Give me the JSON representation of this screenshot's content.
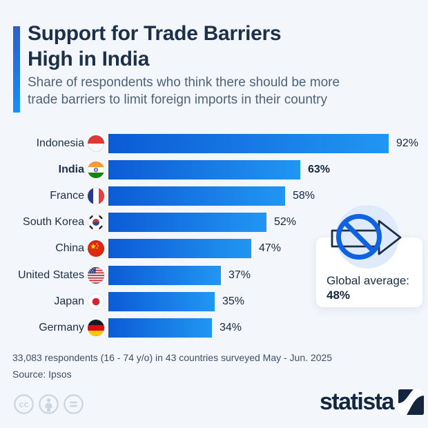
{
  "header": {
    "title_lines": [
      "Support for Trade Barriers",
      "High in India"
    ],
    "subtitle_lines": [
      "Share of respondents who think there should be more",
      "trade barriers to limit foreign imports in their country"
    ]
  },
  "chart_data": {
    "type": "bar",
    "orientation": "horizontal",
    "title": "Support for Trade Barriers High in India",
    "subtitle": "Share of respondents who think there should be more trade barriers to limit foreign imports in their country",
    "unit": "%",
    "categories": [
      "Indonesia",
      "India",
      "France",
      "South Korea",
      "China",
      "United States",
      "Japan",
      "Germany"
    ],
    "values": [
      92,
      63,
      58,
      52,
      47,
      37,
      35,
      34
    ],
    "value_labels": [
      "92%",
      "63%",
      "58%",
      "52%",
      "47%",
      "37%",
      "35%",
      "34%"
    ],
    "flags": [
      "indonesia",
      "india",
      "france",
      "south-korea",
      "china",
      "united-states",
      "japan",
      "germany"
    ],
    "highlight_category": "India",
    "xlim": [
      0,
      100
    ],
    "grid": false,
    "legend": false,
    "bar_gradient": [
      "#0c5bd5",
      "#2196f3"
    ],
    "annotation": {
      "label": "Global average:",
      "value": "48%",
      "icon": "no-trade-barrier-icon"
    }
  },
  "footer": {
    "note": "33,083 respondents (16 - 74 y/o) in 43 countries surveyed May - Jun. 2025",
    "source": "Source: Ipsos"
  },
  "branding": {
    "logo_text": "statista"
  },
  "license": {
    "icons": [
      "cc-icon",
      "attribution-icon",
      "equals-icon"
    ]
  },
  "colors": {
    "background": "#f3f6fa",
    "accent_bar_top": "#2e5ec6",
    "accent_bar_bottom": "#1590f6",
    "title_navy": "#1d3049",
    "subtitle_gray": "#4e6378",
    "halo_blue": "#dfeafa",
    "prohibition_blue": "#1063e0",
    "arrow_navy": "#1c2e4a",
    "license_gray": "#ccd6df",
    "logo_navy": "#14263f"
  }
}
